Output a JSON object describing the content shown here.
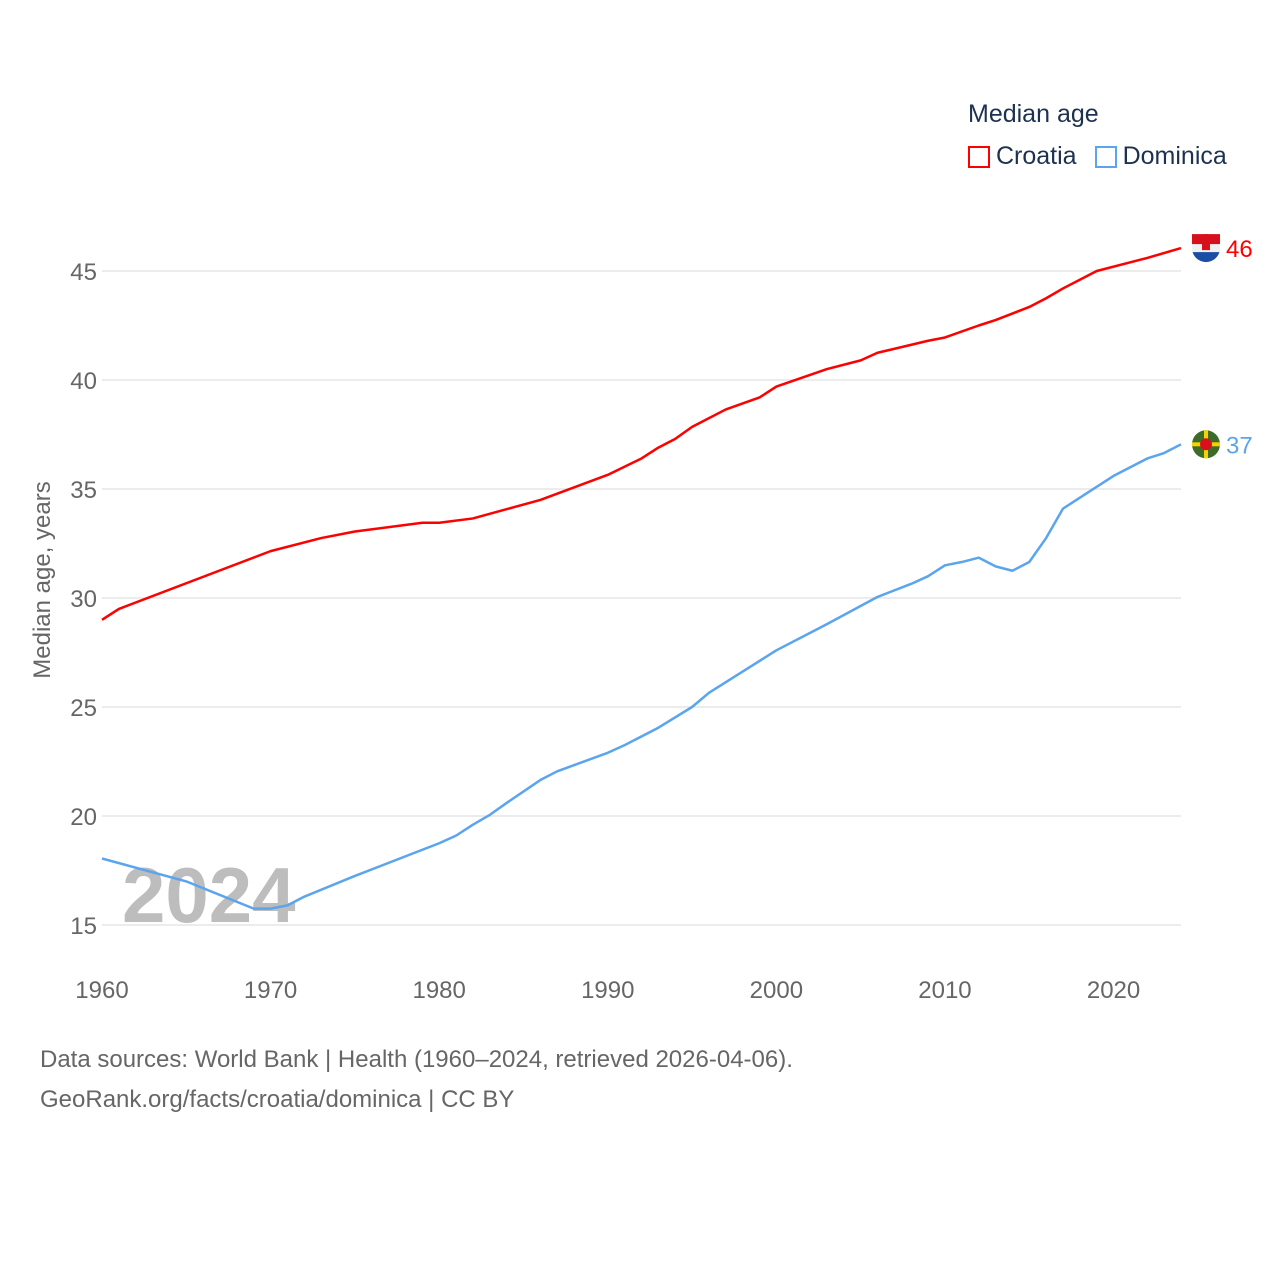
{
  "chart_data": {
    "type": "line",
    "title": "Median age",
    "xlabel": "",
    "ylabel": "Median age, years",
    "xlim": [
      1960,
      2024
    ],
    "ylim": [
      13,
      48
    ],
    "x_ticks": [
      "1960",
      "1970",
      "1980",
      "1990",
      "2000",
      "2010",
      "2020"
    ],
    "y_ticks": [
      "15",
      "20",
      "25",
      "30",
      "35",
      "40",
      "45"
    ],
    "grid": true,
    "legend_position": "top-right",
    "watermark_year": "2024",
    "series": [
      {
        "name": "Croatia",
        "color": "#ff0000",
        "end_label": "46",
        "x": [
          1960,
          1961,
          1970,
          1973,
          1975,
          1979,
          1980,
          1982,
          1986,
          1990,
          1992,
          1993,
          1994,
          1995,
          1997,
          1999,
          2000,
          2003,
          2005,
          2006,
          2009,
          2010,
          2012,
          2013,
          2015,
          2016,
          2017,
          2019,
          2022,
          2024
        ],
        "y": [
          29.0,
          29.5,
          32.15,
          32.75,
          33.05,
          33.45,
          33.45,
          33.65,
          34.5,
          35.65,
          36.4,
          36.9,
          37.3,
          37.85,
          38.65,
          39.2,
          39.7,
          40.5,
          40.9,
          41.25,
          41.8,
          41.95,
          42.5,
          42.75,
          43.35,
          43.75,
          44.2,
          45.0,
          45.6,
          46.05
        ]
      },
      {
        "name": "Dominica",
        "color": "#5ba4ee",
        "end_label": "37",
        "x": [
          1960,
          1965,
          1969,
          1970,
          1971,
          1972,
          1975,
          1980,
          1981,
          1982,
          1983,
          1984,
          1986,
          1987,
          1990,
          1991,
          1993,
          1995,
          1996,
          2000,
          2003,
          2006,
          2008,
          2009,
          2010,
          2011,
          2012,
          2013,
          2014,
          2015,
          2016,
          2017,
          2018,
          2020,
          2022,
          2023,
          2024
        ],
        "y": [
          18.05,
          17.0,
          15.75,
          15.75,
          15.9,
          16.3,
          17.25,
          18.75,
          19.1,
          19.6,
          20.05,
          20.6,
          21.65,
          22.05,
          22.9,
          23.25,
          24.05,
          25.0,
          25.65,
          27.6,
          28.8,
          30.05,
          30.65,
          31.0,
          31.5,
          31.65,
          31.85,
          31.45,
          31.25,
          31.65,
          32.75,
          34.1,
          34.6,
          35.6,
          36.4,
          36.65,
          37.05
        ]
      }
    ]
  },
  "footer": {
    "line1": "Data sources: World Bank | Health (1960–2024, retrieved 2026-04-06).",
    "line2": "GeoRank.org/facts/croatia/dominica | CC BY"
  }
}
